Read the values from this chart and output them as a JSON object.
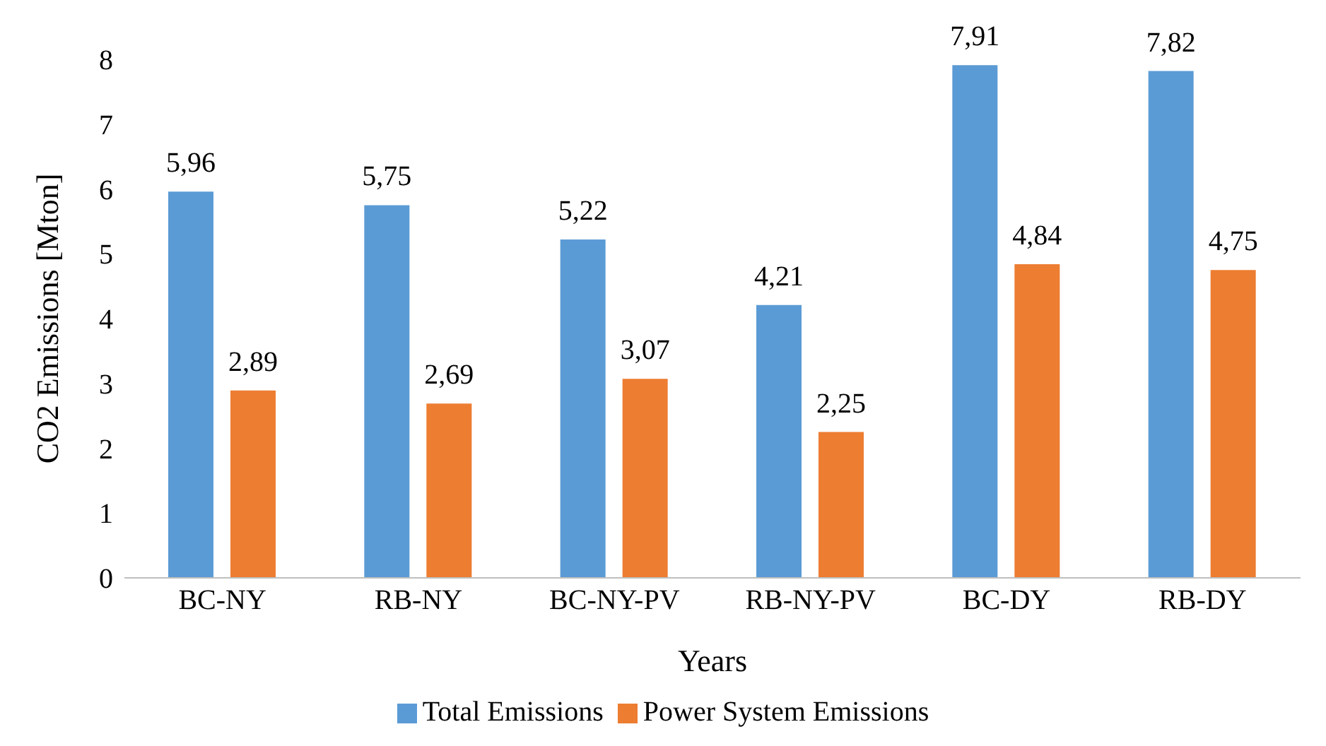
{
  "chart_data": {
    "type": "bar",
    "xlabel": "Years",
    "ylabel": "CO2 Emissions [Mton]",
    "categories": [
      "BC-NY",
      "RB-NY",
      "BC-NY-PV",
      "RB-NY-PV",
      "BC-DY",
      "RB-DY"
    ],
    "series": [
      {
        "name": "Total Emissions",
        "color": "#5b9bd5",
        "values": [
          5.96,
          5.75,
          5.22,
          4.21,
          7.91,
          7.82
        ],
        "value_labels": [
          "5,96",
          "5,75",
          "5,22",
          "4,21",
          "7,91",
          "7,82"
        ]
      },
      {
        "name": "Power System Emissions",
        "color": "#ed7d31",
        "values": [
          2.89,
          2.69,
          3.07,
          2.25,
          4.84,
          4.75
        ],
        "value_labels": [
          "2,89",
          "2,69",
          "3,07",
          "2,25",
          "4,84",
          "4,75"
        ]
      }
    ],
    "ylim": [
      0,
      8
    ],
    "yticks": [
      0,
      1,
      2,
      3,
      4,
      5,
      6,
      7,
      8
    ],
    "grid": false,
    "legend": "bottom"
  }
}
